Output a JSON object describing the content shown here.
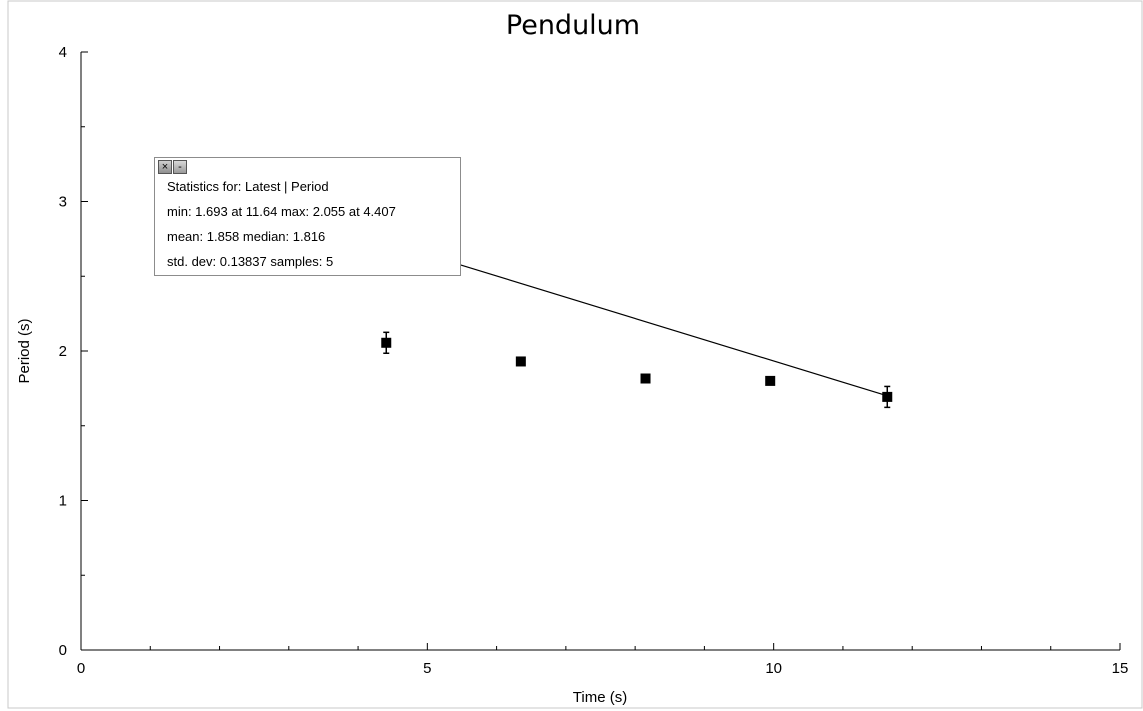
{
  "chart_data": {
    "type": "scatter",
    "title": "Pendulum",
    "xlabel": "Time (s)",
    "ylabel": "Period (s)",
    "xlim": [
      0,
      15
    ],
    "ylim": [
      0,
      4
    ],
    "x_ticks": [
      0,
      5,
      10,
      15
    ],
    "y_ticks": [
      0,
      1,
      2,
      3,
      4
    ],
    "x_minor_step": 1,
    "y_minor_step": 0.5,
    "grid": false,
    "series": [
      {
        "points": [
          {
            "x": 4.407,
            "y": 2.055,
            "yerr": 0.07
          },
          {
            "x": 6.35,
            "y": 1.93,
            "yerr": 0
          },
          {
            "x": 8.15,
            "y": 1.816,
            "yerr": 0
          },
          {
            "x": 9.95,
            "y": 1.8,
            "yerr": 0
          },
          {
            "x": 11.64,
            "y": 1.693,
            "yerr": 0.07
          }
        ],
        "color": "#000000"
      }
    ],
    "annotation_line": {
      "from": {
        "x": 5.45,
        "y": 2.58
      },
      "to": {
        "x": 11.64,
        "y": 1.7
      },
      "color": "#000000"
    }
  },
  "stats": {
    "line1": "Statistics for: Latest | Period",
    "line2": "min: 1.693 at 11.64 max: 2.055 at 4.407",
    "line3": "mean: 1.858 median: 1.816",
    "line4": "std. dev: 0.13837 samples: 5",
    "close_symbol": "×",
    "minimize_symbol": "-"
  }
}
